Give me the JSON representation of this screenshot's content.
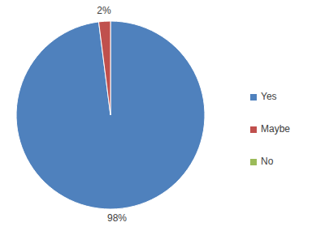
{
  "chart_data": {
    "type": "pie",
    "categories": [
      "Yes",
      "Maybe",
      "No"
    ],
    "values": [
      98,
      2,
      0
    ],
    "value_labels": [
      "98%",
      "2%",
      null
    ],
    "colors": [
      "#4f81bd",
      "#c0504d",
      "#9bbb59"
    ],
    "data_labels": true,
    "legend": "right"
  }
}
